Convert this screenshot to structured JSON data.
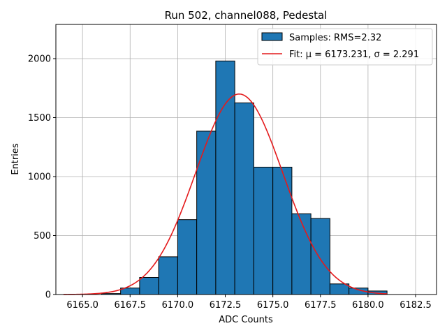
{
  "chart_data": {
    "type": "bar",
    "title": "Run 502, channel088, Pedestal",
    "xlabel": "ADC Counts",
    "ylabel": "Entries",
    "xlim": [
      6163.6,
      6183.6
    ],
    "ylim": [
      0,
      2290
    ],
    "xticks": [
      6165.0,
      6167.5,
      6170.0,
      6172.5,
      6175.0,
      6177.5,
      6180.0,
      6182.5
    ],
    "xtick_labels": [
      "6165.0",
      "6167.5",
      "6170.0",
      "6172.5",
      "6175.0",
      "6177.5",
      "6180.0",
      "6182.5"
    ],
    "yticks": [
      0,
      500,
      1000,
      1500,
      2000
    ],
    "ytick_labels": [
      "0",
      "500",
      "1000",
      "1500",
      "2000"
    ],
    "grid": true,
    "legend_position": "upper right",
    "series": [
      {
        "name": "Samples: RMS=2.32",
        "kind": "histogram",
        "color": "#1f77b4",
        "bin_edges": [
          6166.0,
          6167.0,
          6168.0,
          6169.0,
          6170.0,
          6171.0,
          6172.0,
          6173.0,
          6174.0,
          6175.0,
          6176.0,
          6177.0,
          6178.0,
          6179.0,
          6180.0,
          6181.0
        ],
        "values": [
          8,
          55,
          145,
          320,
          635,
          1385,
          1980,
          1625,
          1080,
          1080,
          685,
          645,
          90,
          55,
          30
        ]
      },
      {
        "name": "Fit: μ = 6173.231, σ = 2.291",
        "kind": "gaussian",
        "color": "#e41a1c",
        "mu": 6173.231,
        "sigma": 2.291,
        "amplitude": 1700,
        "x_range": [
          6164.0,
          6181.0
        ]
      }
    ]
  }
}
